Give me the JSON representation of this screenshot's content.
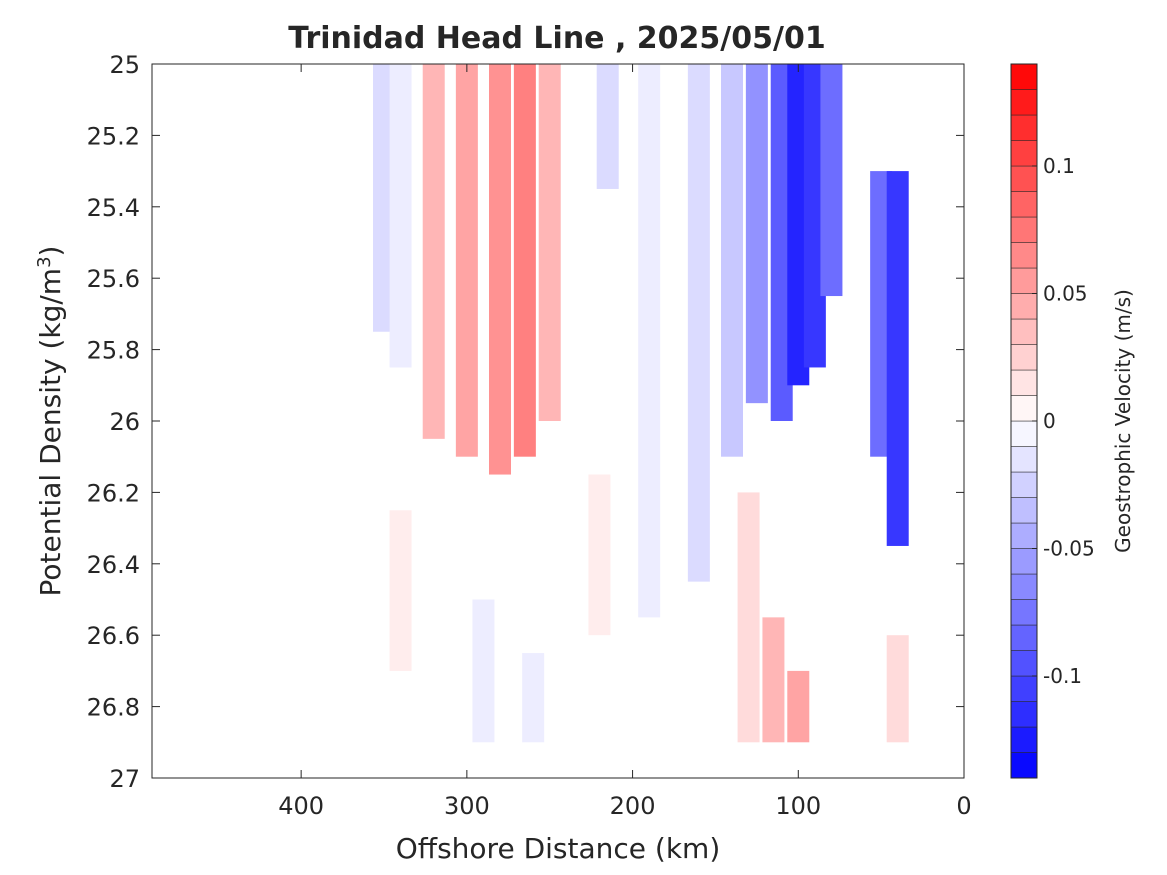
{
  "chart_data": {
    "type": "heatmap",
    "title": "Trinidad Head Line , 2025/05/01",
    "xlabel": "Offshore Distance (km)",
    "ylabel_main": "Potential Density (kg/m",
    "ylabel_sup": "3",
    "ylabel_close": ")",
    "xlim": [
      490,
      0
    ],
    "x_reversed": true,
    "ylim": [
      25,
      27
    ],
    "y_reversed": true,
    "x_ticks": [
      400,
      300,
      200,
      100,
      0
    ],
    "y_ticks": [
      25,
      25.2,
      25.4,
      25.6,
      25.8,
      26,
      26.2,
      26.4,
      26.6,
      26.8,
      27
    ],
    "y_tick_labels": [
      "25",
      "25.2",
      "25.4",
      "25.6",
      "25.8",
      "26",
      "26.2",
      "26.4",
      "26.6",
      "26.8",
      "27"
    ],
    "colorbar": {
      "label": "Geostrophic Velocity (m/s)",
      "min": -0.14,
      "max": 0.14,
      "step": 0.01,
      "ticks": [
        0.1,
        0.05,
        0,
        -0.05,
        -0.1
      ],
      "tick_labels": [
        "0.1",
        "0.05",
        "0",
        "-0.05",
        "-0.1"
      ],
      "neg_color": "#0000ff",
      "pos_color": "#ff0000",
      "zero_color": "#ffffff"
    },
    "columns": [
      {
        "x": 350,
        "y_top": 25.0,
        "y_bottom": 25.75,
        "v": -0.02
      },
      {
        "x": 340,
        "y_top": 25.0,
        "y_bottom": 25.85,
        "v": -0.01
      },
      {
        "x": 320,
        "y_top": 25.0,
        "y_bottom": 26.05,
        "v": 0.04
      },
      {
        "x": 300,
        "y_top": 25.0,
        "y_bottom": 26.1,
        "v": 0.05
      },
      {
        "x": 280,
        "y_top": 25.0,
        "y_bottom": 26.15,
        "v": 0.06
      },
      {
        "x": 265,
        "y_top": 25.0,
        "y_bottom": 26.1,
        "v": 0.07
      },
      {
        "x": 250,
        "y_top": 25.0,
        "y_bottom": 26.0,
        "v": 0.04
      },
      {
        "x": 215,
        "y_top": 25.0,
        "y_bottom": 25.35,
        "v": -0.02
      },
      {
        "x": 190,
        "y_top": 25.0,
        "y_bottom": 26.55,
        "v": -0.01
      },
      {
        "x": 160,
        "y_top": 25.0,
        "y_bottom": 26.45,
        "v": -0.02
      },
      {
        "x": 140,
        "y_top": 25.0,
        "y_bottom": 26.1,
        "v": -0.03
      },
      {
        "x": 125,
        "y_top": 25.0,
        "y_bottom": 25.95,
        "v": -0.06
      },
      {
        "x": 110,
        "y_top": 25.0,
        "y_bottom": 26.0,
        "v": -0.09
      },
      {
        "x": 100,
        "y_top": 25.0,
        "y_bottom": 25.9,
        "v": -0.12
      },
      {
        "x": 90,
        "y_top": 25.0,
        "y_bottom": 25.85,
        "v": -0.11
      },
      {
        "x": 80,
        "y_top": 25.0,
        "y_bottom": 25.65,
        "v": -0.08
      },
      {
        "x": 50,
        "y_top": 25.3,
        "y_bottom": 26.1,
        "v": -0.08
      },
      {
        "x": 40,
        "y_top": 25.3,
        "y_bottom": 26.35,
        "v": -0.11
      },
      {
        "x": 100,
        "y_top": 26.7,
        "y_bottom": 26.9,
        "v": 0.05
      },
      {
        "x": 115,
        "y_top": 26.55,
        "y_bottom": 26.9,
        "v": 0.04
      },
      {
        "x": 130,
        "y_top": 26.2,
        "y_bottom": 26.9,
        "v": 0.02
      },
      {
        "x": 40,
        "y_top": 26.6,
        "y_bottom": 26.9,
        "v": 0.02
      },
      {
        "x": 290,
        "y_top": 26.5,
        "y_bottom": 26.9,
        "v": -0.01
      },
      {
        "x": 260,
        "y_top": 26.65,
        "y_bottom": 26.9,
        "v": -0.01
      },
      {
        "x": 220,
        "y_top": 26.15,
        "y_bottom": 26.6,
        "v": 0.01
      },
      {
        "x": 340,
        "y_top": 26.25,
        "y_bottom": 26.7,
        "v": 0.01
      }
    ]
  }
}
